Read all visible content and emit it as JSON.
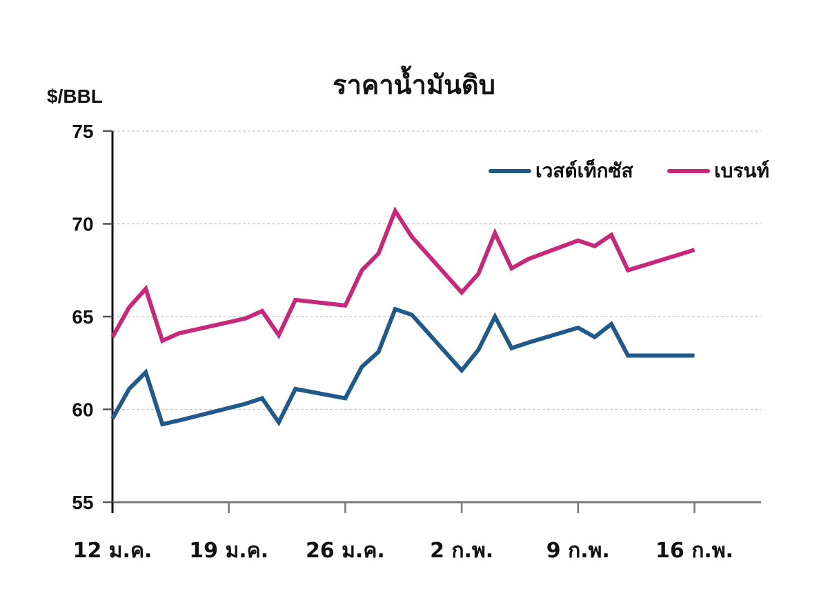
{
  "chart_data": {
    "type": "line",
    "title": "ราคาน้ำมันดิบ",
    "ylabel": "$/BBL",
    "xlabel": "",
    "ylim": [
      55,
      75
    ],
    "yticks": [
      55,
      60,
      65,
      70,
      75
    ],
    "grid": true,
    "legend_position": "top-right",
    "x_tick_labels": [
      "12 ม.ค.",
      "19 ม.ค.",
      "26 ม.ค.",
      "2 ก.พ.",
      "9 ก.พ.",
      "16 ก.พ."
    ],
    "x": [
      "12 ม.ค.",
      "13 ม.ค.",
      "14 ม.ค.",
      "15 ม.ค.",
      "16 ม.ค.",
      "20 ม.ค.",
      "21 ม.ค.",
      "22 ม.ค.",
      "23 ม.ค.",
      "26 ม.ค.",
      "27 ม.ค.",
      "28 ม.ค.",
      "29 ม.ค.",
      "30 ม.ค.",
      "2 ก.พ.",
      "3 ก.พ.",
      "4 ก.พ.",
      "5 ก.พ.",
      "6 ก.พ.",
      "9 ก.พ.",
      "10 ก.พ.",
      "11 ก.พ.",
      "12 ก.พ.",
      "16 ก.พ."
    ],
    "x_day_offset": [
      0,
      1,
      2,
      3,
      4,
      8,
      9,
      10,
      11,
      14,
      15,
      16,
      17,
      18,
      21,
      22,
      23,
      24,
      25,
      28,
      29,
      30,
      31,
      35
    ],
    "series": [
      {
        "name": "เวสต์เท็กซัส",
        "color": "#1f5a8a",
        "values": [
          59.5,
          61.1,
          62.0,
          59.2,
          59.4,
          60.3,
          60.6,
          59.3,
          61.1,
          60.6,
          62.3,
          63.1,
          65.4,
          65.1,
          62.1,
          63.2,
          65.0,
          63.3,
          63.6,
          64.4,
          63.9,
          64.6,
          62.9,
          62.9
        ]
      },
      {
        "name": "เบรนท์",
        "color": "#c8287a",
        "values": [
          63.9,
          65.5,
          66.5,
          63.7,
          64.1,
          64.9,
          65.3,
          64.0,
          65.9,
          65.6,
          67.5,
          68.4,
          70.7,
          69.3,
          66.3,
          67.3,
          69.5,
          67.6,
          68.1,
          69.1,
          68.8,
          69.4,
          67.5,
          68.6
        ]
      }
    ]
  }
}
